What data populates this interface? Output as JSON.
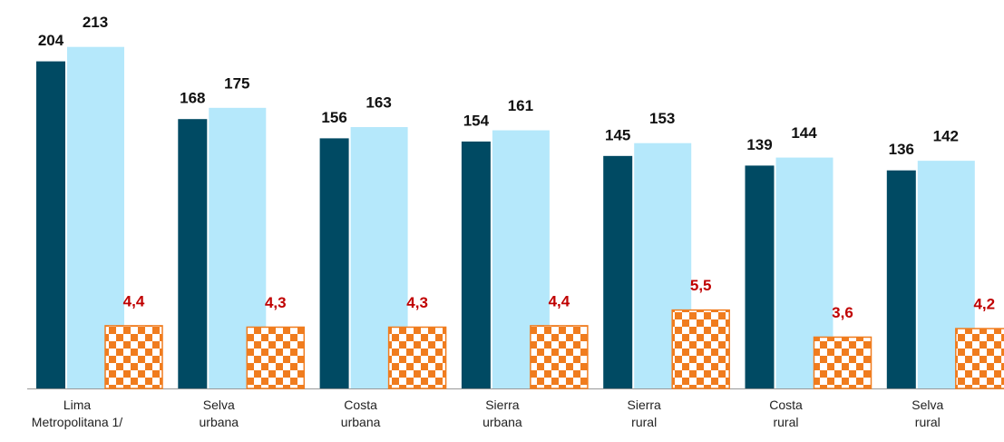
{
  "chart_data": {
    "type": "bar",
    "categories": [
      "Lima\nMetropolitana 1/",
      "Selva\nurbana",
      "Costa\nurbana",
      "Sierra\nurbana",
      "Sierra\nrural",
      "Costa\nrural",
      "Selva\nrural"
    ],
    "series": [
      {
        "color": "#004a63",
        "values": [
          204,
          168,
          156,
          154,
          145,
          139,
          136
        ]
      },
      {
        "color": "#b5e8fb",
        "values": [
          213,
          175,
          163,
          161,
          153,
          144,
          142
        ]
      },
      {
        "color": "#f07c1e",
        "axis": "y2",
        "values": [
          4.4,
          4.3,
          4.3,
          4.4,
          5.5,
          3.6,
          4.2
        ],
        "value_labels": [
          "4,4",
          "4,3",
          "4,3",
          "4,4",
          "5,5",
          "3,6",
          "4,2"
        ],
        "label_color": "#c00000"
      }
    ],
    "ylim": [
      0,
      240
    ],
    "y2lim": [
      0,
      27
    ]
  }
}
